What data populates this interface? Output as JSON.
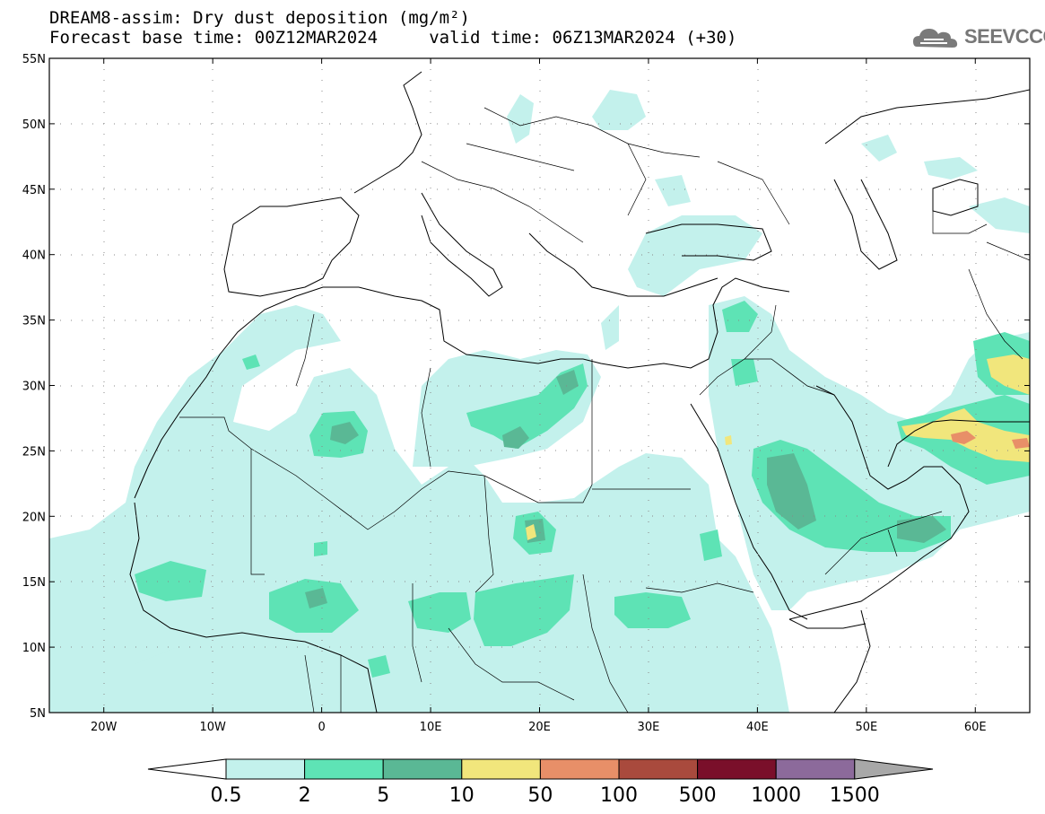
{
  "header": {
    "title_line1": "DREAM8-assim: Dry dust deposition (mg/m²)",
    "title_line2": "Forecast base time: 00Z12MAR2024     valid time: 06Z13MAR2024 (+30)",
    "logo_text": "SEEVCCC"
  },
  "map": {
    "lon_range": [
      -25,
      65
    ],
    "lat_range": [
      5,
      55
    ],
    "lat_ticks": [
      {
        "value": 55,
        "label": "55N"
      },
      {
        "value": 50,
        "label": "50N"
      },
      {
        "value": 45,
        "label": "45N"
      },
      {
        "value": 40,
        "label": "40N"
      },
      {
        "value": 35,
        "label": "35N"
      },
      {
        "value": 30,
        "label": "30N"
      },
      {
        "value": 25,
        "label": "25N"
      },
      {
        "value": 20,
        "label": "20N"
      },
      {
        "value": 15,
        "label": "15N"
      },
      {
        "value": 10,
        "label": "10N"
      },
      {
        "value": 5,
        "label": "5N"
      }
    ],
    "lon_ticks": [
      {
        "value": -20,
        "label": "20W"
      },
      {
        "value": -10,
        "label": "10W"
      },
      {
        "value": 0,
        "label": "0"
      },
      {
        "value": 10,
        "label": "10E"
      },
      {
        "value": 20,
        "label": "20E"
      },
      {
        "value": 30,
        "label": "30E"
      },
      {
        "value": 40,
        "label": "40E"
      },
      {
        "value": 50,
        "label": "50E"
      },
      {
        "value": 60,
        "label": "60E"
      }
    ],
    "grid": "dotted"
  },
  "colorbar": {
    "labels": [
      "0.5",
      "2",
      "5",
      "10",
      "50",
      "100",
      "500",
      "1000",
      "1500"
    ],
    "colors": [
      "#c3f1ec",
      "#5ee3b5",
      "#5ab895",
      "#f1e67c",
      "#e88f68",
      "#a94a3d",
      "#7a0f2a",
      "#8c6a9b"
    ],
    "under_color": "#ffffff",
    "over_color": "#a8a8a8"
  },
  "colors": {
    "level1": "#c3f1ec",
    "level2": "#5ee3b5",
    "level3": "#5ab895",
    "level4": "#f1e67c",
    "level5": "#e88f68"
  }
}
